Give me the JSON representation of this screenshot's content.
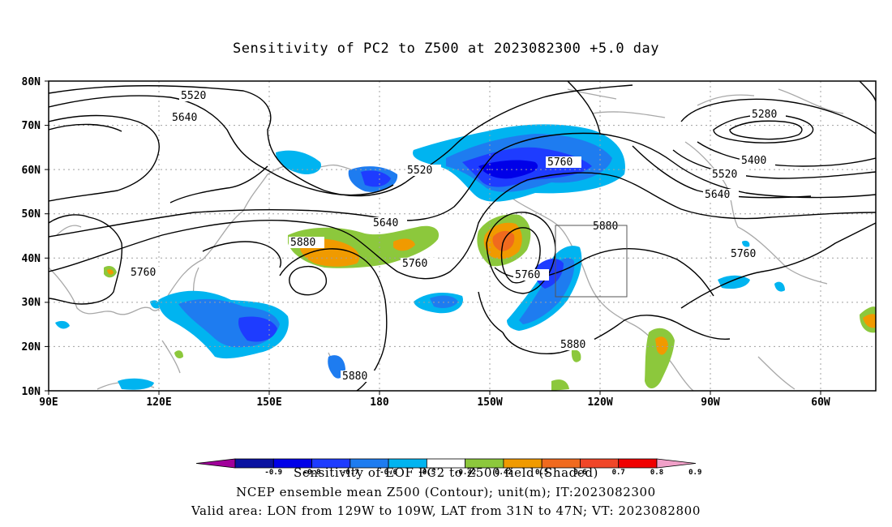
{
  "title": "Sensitivity of PC2 to Z500 at 2023082300 +5.0 day",
  "lat_labels": [
    "80N",
    "70N",
    "60N",
    "50N",
    "40N",
    "30N",
    "20N",
    "10N"
  ],
  "lon_labels": [
    "90E",
    "120E",
    "150E",
    "180",
    "150W",
    "120W",
    "90W",
    "60W"
  ],
  "contour_labels": [
    "5520",
    "5640",
    "5280",
    "5400",
    "5520",
    "5640",
    "5520",
    "5760",
    "5640",
    "5880",
    "5760",
    "5880",
    "5760",
    "5760",
    "5760",
    "5880",
    "5880"
  ],
  "colorbar": {
    "ticks": [
      "-0.9",
      "-0.8",
      "-0.7",
      "-0.6",
      "-0.5",
      "-0.42",
      "0.42",
      "0.5",
      "0.6",
      "0.7",
      "0.8",
      "0.9"
    ],
    "colors": [
      "#a0009a",
      "#0a12a0",
      "#0000e8",
      "#1e3cff",
      "#1e7cf0",
      "#00b4f0",
      "#ffffff",
      "#8cc83c",
      "#f09a00",
      "#f06a1e",
      "#f04628",
      "#f00000",
      "#f0a0c8"
    ]
  },
  "footer": [
    "Sensitivity of EOF PC2 to Z500 field (Shaded)",
    "NCEP ensemble mean Z500 (Contour); unit(m); IT:2023082300",
    "Valid area: LON from 129W to 109W, LAT from 31N to 47N; VT: 2023082800"
  ],
  "colors": {
    "contour": "#000000",
    "coastline": "#a0a0a0",
    "grid": "#a0a0a0",
    "positive": "#f09a00",
    "negative": "#1e3cff"
  }
}
